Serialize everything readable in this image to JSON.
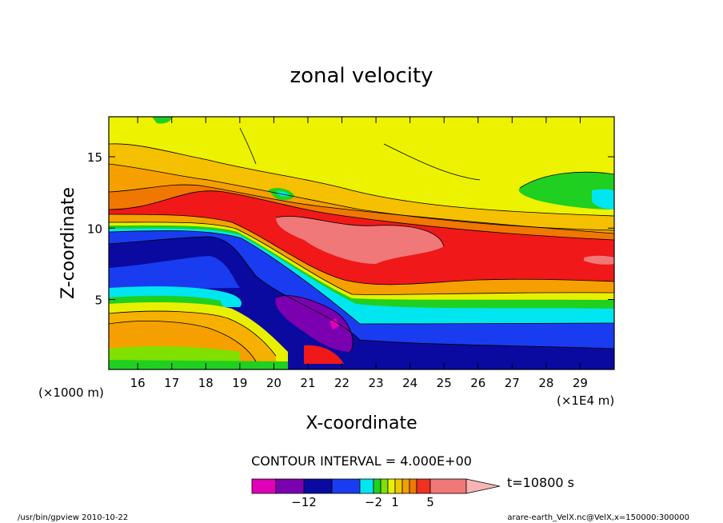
{
  "chart_data": {
    "type": "heatmap",
    "title": "zonal velocity",
    "xlabel": "X-coordinate",
    "ylabel": "Z-coordinate",
    "x_unit_left": "(×1000 m)",
    "x_unit_right": "(×1E4 m)",
    "xlim": [
      15.15,
      30.0
    ],
    "ylim": [
      0.1,
      17.8
    ],
    "x_ticks": [
      16,
      17,
      18,
      19,
      20,
      21,
      22,
      23,
      24,
      25,
      26,
      27,
      28,
      29
    ],
    "y_ticks": [
      5,
      10,
      15
    ],
    "contour_interval_text": "CONTOUR INTERVAL = 4.000E+00",
    "time_label": "t=10800 s",
    "footer_left": "/usr/bin/gpview  2010-10-22",
    "footer_right": "arare-earth_VelX.nc@VelX,x=150000:300000",
    "colorbar": {
      "tick_labels": [
        "-12",
        "-2",
        "1",
        "5"
      ],
      "levels": [
        -20,
        -16,
        -12,
        -8,
        -4,
        -2,
        -1,
        0,
        1,
        2,
        3,
        4,
        5,
        10
      ],
      "colors": [
        "#e000b8",
        "#7a00b0",
        "#0a0aa0",
        "#1a3cf0",
        "#00e6f0",
        "#20d020",
        "#80e000",
        "#e8f000",
        "#f0c800",
        "#f0a000",
        "#f07800",
        "#f03020",
        "#f07878",
        "#f8b4b4"
      ]
    },
    "field_bands": [
      {
        "name": "upper",
        "color": "#ecf200"
      },
      {
        "name": "jet-core",
        "color": "#f07878"
      },
      {
        "name": "jet",
        "color": "#f01818"
      },
      {
        "name": "shear-orange",
        "color": "#f5a000"
      },
      {
        "name": "lower-return",
        "color": "#1a3cf0"
      },
      {
        "name": "deep-return",
        "color": "#0a0aa0"
      },
      {
        "name": "minimum",
        "color": "#7a00b0"
      },
      {
        "name": "surface",
        "color": "#f5b000"
      }
    ]
  }
}
